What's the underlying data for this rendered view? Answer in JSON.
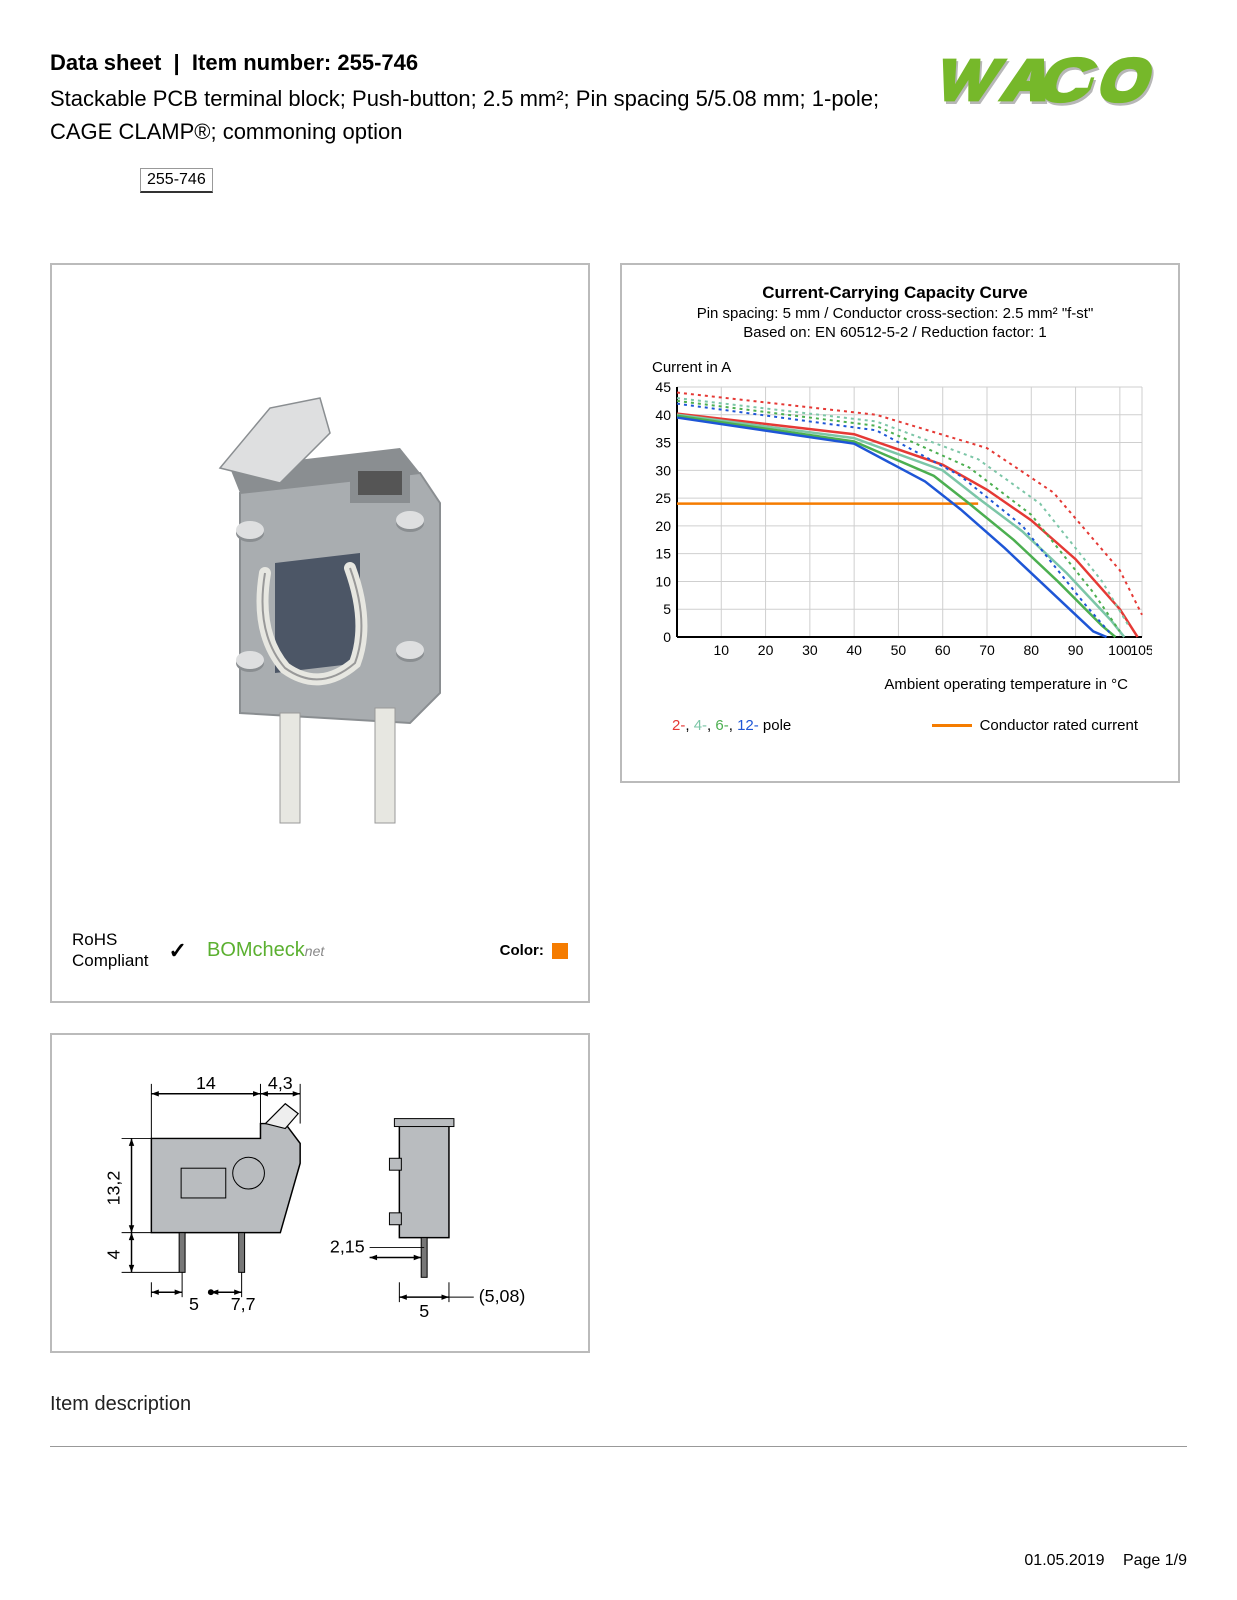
{
  "header": {
    "datasheet_label": "Data sheet",
    "item_label": "Item number:",
    "item_number": "255-746",
    "subtitle": "Stackable PCB terminal block; Push-button; 2.5 mm²; Pin spacing 5/5.08 mm; 1-pole; CAGE CLAMP®; commoning option",
    "badge": "255-746"
  },
  "logo": {
    "text": "WAGO",
    "fill": "#76b82a",
    "shadow": "#b7b7b7"
  },
  "compliance": {
    "rohs_line1": "RoHS",
    "rohs_line2": "Compliant",
    "check": "✓",
    "bomcheck": "BOMcheck",
    "bomcheck_net": "net",
    "color_label": "Color:",
    "color_swatch": "#f57c00"
  },
  "chart": {
    "title": "Current-Carrying Capacity Curve",
    "sub1": "Pin spacing: 5 mm / Conductor cross-section: 2.5 mm² \"f-st\"",
    "sub2": "Based on: EN 60512-5-2 / Reduction factor: 1",
    "ylabel": "Current in A",
    "xlabel": "Ambient operating temperature in °C",
    "ylim": [
      0,
      45
    ],
    "ytick_step": 5,
    "yticks": [
      "0",
      "5",
      "10",
      "15",
      "20",
      "25",
      "30",
      "35",
      "40",
      "45"
    ],
    "xlim": [
      0,
      105
    ],
    "xticks_pos": [
      10,
      20,
      30,
      40,
      50,
      60,
      70,
      80,
      90,
      100,
      105
    ],
    "xticks": [
      "10",
      "20",
      "30",
      "40",
      "50",
      "60",
      "70",
      "80",
      "90",
      "100",
      "105"
    ],
    "grid_color": "#cfcfcf",
    "axis_color": "#000000",
    "background": "#ffffff",
    "rated_current": 24,
    "rated_color": "#f57c00",
    "series": [
      {
        "label": "2-pole",
        "color": "#e53935",
        "solid": [
          [
            0,
            40.2
          ],
          [
            40,
            36.5
          ],
          [
            60,
            31
          ],
          [
            70,
            26.5
          ],
          [
            80,
            21
          ],
          [
            90,
            14
          ],
          [
            100,
            5
          ],
          [
            104,
            0
          ]
        ],
        "dotted": [
          [
            0,
            44
          ],
          [
            45,
            40
          ],
          [
            70,
            34
          ],
          [
            85,
            26
          ],
          [
            100,
            12
          ],
          [
            105,
            4
          ]
        ]
      },
      {
        "label": "4-pole",
        "color": "#7cc6a7",
        "solid": [
          [
            0,
            40
          ],
          [
            40,
            35.8
          ],
          [
            60,
            30
          ],
          [
            68,
            25
          ],
          [
            78,
            19
          ],
          [
            88,
            11.5
          ],
          [
            98,
            3
          ],
          [
            101,
            0
          ]
        ],
        "dotted": [
          [
            0,
            43
          ],
          [
            45,
            38.8
          ],
          [
            68,
            32
          ],
          [
            82,
            24
          ],
          [
            96,
            10
          ],
          [
            102,
            2
          ]
        ]
      },
      {
        "label": "6-pole",
        "color": "#4caf50",
        "solid": [
          [
            0,
            39.8
          ],
          [
            40,
            35.2
          ],
          [
            58,
            29
          ],
          [
            66,
            24
          ],
          [
            76,
            17.5
          ],
          [
            86,
            10
          ],
          [
            96,
            2
          ],
          [
            99,
            0
          ]
        ],
        "dotted": [
          [
            0,
            42.5
          ],
          [
            45,
            38
          ],
          [
            66,
            30.5
          ],
          [
            80,
            22
          ],
          [
            94,
            8
          ],
          [
            100,
            1
          ]
        ]
      },
      {
        "label": "12-pole",
        "color": "#1e56d6",
        "solid": [
          [
            0,
            39.5
          ],
          [
            40,
            34.8
          ],
          [
            56,
            28
          ],
          [
            64,
            23
          ],
          [
            74,
            16
          ],
          [
            84,
            8.5
          ],
          [
            94,
            1
          ],
          [
            97,
            0
          ]
        ],
        "dotted": [
          [
            0,
            42
          ],
          [
            45,
            37.2
          ],
          [
            64,
            29
          ],
          [
            78,
            20
          ],
          [
            92,
            6
          ],
          [
            98,
            0.5
          ]
        ]
      }
    ],
    "legend_poles": [
      {
        "text": "2-",
        "color": "#e53935"
      },
      {
        "text": "4-",
        "color": "#7cc6a7"
      },
      {
        "text": "6-",
        "color": "#4caf50"
      },
      {
        "text": "12-",
        "color": "#1e56d6"
      }
    ],
    "legend_pole_suffix": " pole",
    "legend_rated": "Conductor rated current"
  },
  "dimensions": {
    "values": [
      "14",
      "4,3",
      "13,2",
      "4",
      "5",
      "7,7",
      "2,15",
      "5",
      "(5,08)"
    ],
    "block_fill": "#b9bcbf",
    "line_color": "#000000"
  },
  "product_render": {
    "body_fill": "#a9adb0",
    "body_shade": "#8a8e91",
    "lever_fill": "#dedfe0",
    "cage_fill": "#4c5666",
    "wire_fill": "#e7e7e1"
  },
  "section": {
    "item_description": "Item description"
  },
  "footer": {
    "date": "01.05.2019",
    "page": "Page 1/9"
  }
}
